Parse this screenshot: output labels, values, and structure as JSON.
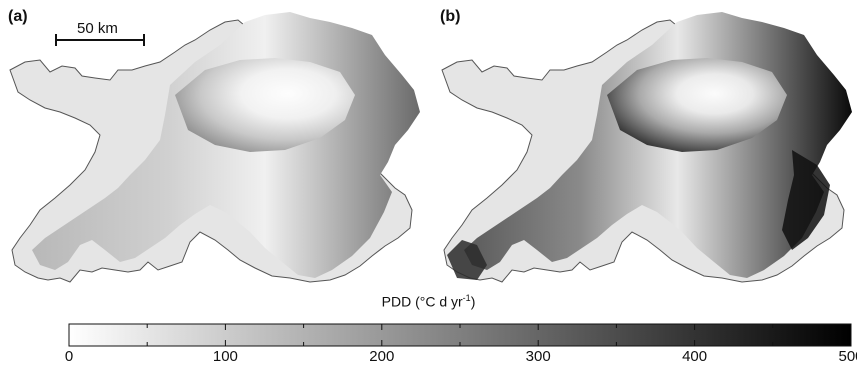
{
  "panels": [
    {
      "id": "a",
      "label": "(a)",
      "intensity": 0.55
    },
    {
      "id": "b",
      "label": "(b)",
      "intensity": 1.0
    }
  ],
  "scale_bar": {
    "label": "50 km"
  },
  "colorbar": {
    "title": "PDD (°C d yr",
    "title_sup": "-1",
    "title_end": ")",
    "min": 0,
    "max": 500,
    "major_ticks": [
      0,
      100,
      200,
      300,
      400,
      500
    ],
    "minor_step": 50,
    "color_low": "#ffffff",
    "color_high": "#000000"
  },
  "colors": {
    "ice_cap_center": "#fafafa",
    "outer_region": "#e5e5e5",
    "outline": "#555555"
  }
}
